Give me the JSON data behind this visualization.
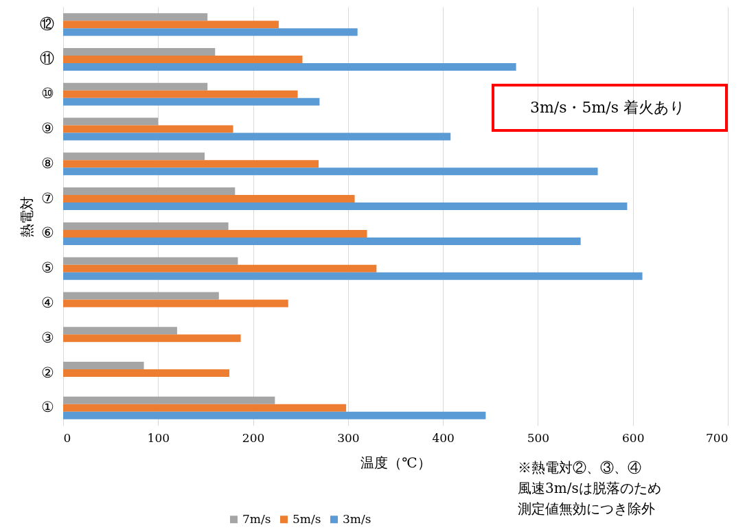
{
  "chart_data": {
    "type": "bar",
    "orientation": "horizontal",
    "categories": [
      "⑫",
      "⑪",
      "⑩",
      "⑨",
      "⑧",
      "⑦",
      "⑥",
      "⑤",
      "④",
      "③",
      "②",
      "①"
    ],
    "series": [
      {
        "name": "7m/s",
        "color": "#a5a5a5",
        "values": [
          152,
          160,
          152,
          100,
          149,
          181,
          174,
          184,
          164,
          120,
          85,
          223
        ]
      },
      {
        "name": "5m/s",
        "color": "#ed7d31",
        "values": [
          227,
          252,
          247,
          179,
          269,
          307,
          320,
          330,
          237,
          187,
          175,
          298
        ]
      },
      {
        "name": "3m/s",
        "color": "#5b9bd5",
        "values": [
          310,
          477,
          270,
          408,
          563,
          594,
          545,
          610,
          null,
          null,
          null,
          445
        ]
      }
    ],
    "xlabel": "温度（℃）",
    "ylabel": "熱電対",
    "xlim": [
      0,
      700
    ],
    "xticks": [
      0,
      100,
      200,
      300,
      400,
      500,
      600,
      700
    ],
    "grid": "x",
    "legend": "bottom",
    "annotations": [
      "3m/s・5m/s 着火あり",
      "※熱電対②、③、④",
      "風速3m/sは脱落のため",
      "測定値無効につき除外"
    ]
  }
}
